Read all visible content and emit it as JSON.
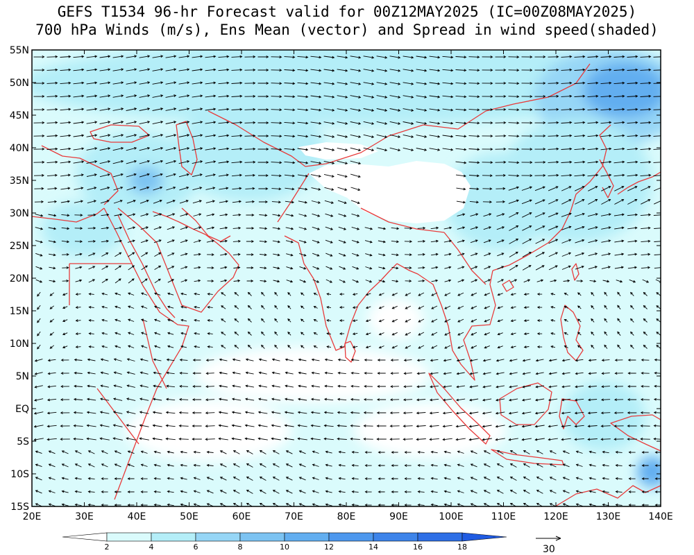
{
  "title": {
    "line1": "GEFS T1534 96-hr Forecast valid for 00Z12MAY2025 (IC=00Z08MAY2025)",
    "line2": "700 hPa Winds (m/s), Ens Mean (vector) and Spread in wind speed(shaded)"
  },
  "axes": {
    "lon_labels": [
      "20E",
      "30E",
      "40E",
      "50E",
      "60E",
      "70E",
      "80E",
      "90E",
      "100E",
      "110E",
      "120E",
      "130E",
      "140E"
    ],
    "lat_labels": [
      "55N",
      "50N",
      "45N",
      "40N",
      "35N",
      "30N",
      "25N",
      "20N",
      "15N",
      "10N",
      "5N",
      "EQ",
      "5S",
      "10S",
      "15S"
    ],
    "lon_values": [
      20,
      30,
      40,
      50,
      60,
      70,
      80,
      90,
      100,
      110,
      120,
      130,
      140
    ],
    "lat_values": [
      55,
      50,
      45,
      40,
      35,
      30,
      25,
      20,
      15,
      10,
      5,
      0,
      -5,
      -10,
      -15
    ],
    "lon_range": [
      20,
      140
    ],
    "lat_range": [
      -15,
      55
    ]
  },
  "colorbar": {
    "labels": [
      "2",
      "4",
      "6",
      "8",
      "10",
      "12",
      "14",
      "16",
      "18"
    ],
    "colors": [
      "#ffffff",
      "#dafbfc",
      "#b4eef8",
      "#96d6f6",
      "#7cc3f2",
      "#62aef0",
      "#4d98ee",
      "#3d84ea",
      "#2e6fe6",
      "#1f5be2"
    ]
  },
  "reference_vector": {
    "label": "30"
  },
  "colors": {
    "coastline": "#e83a3a",
    "frame": "#000000",
    "vector": "#000000"
  }
}
